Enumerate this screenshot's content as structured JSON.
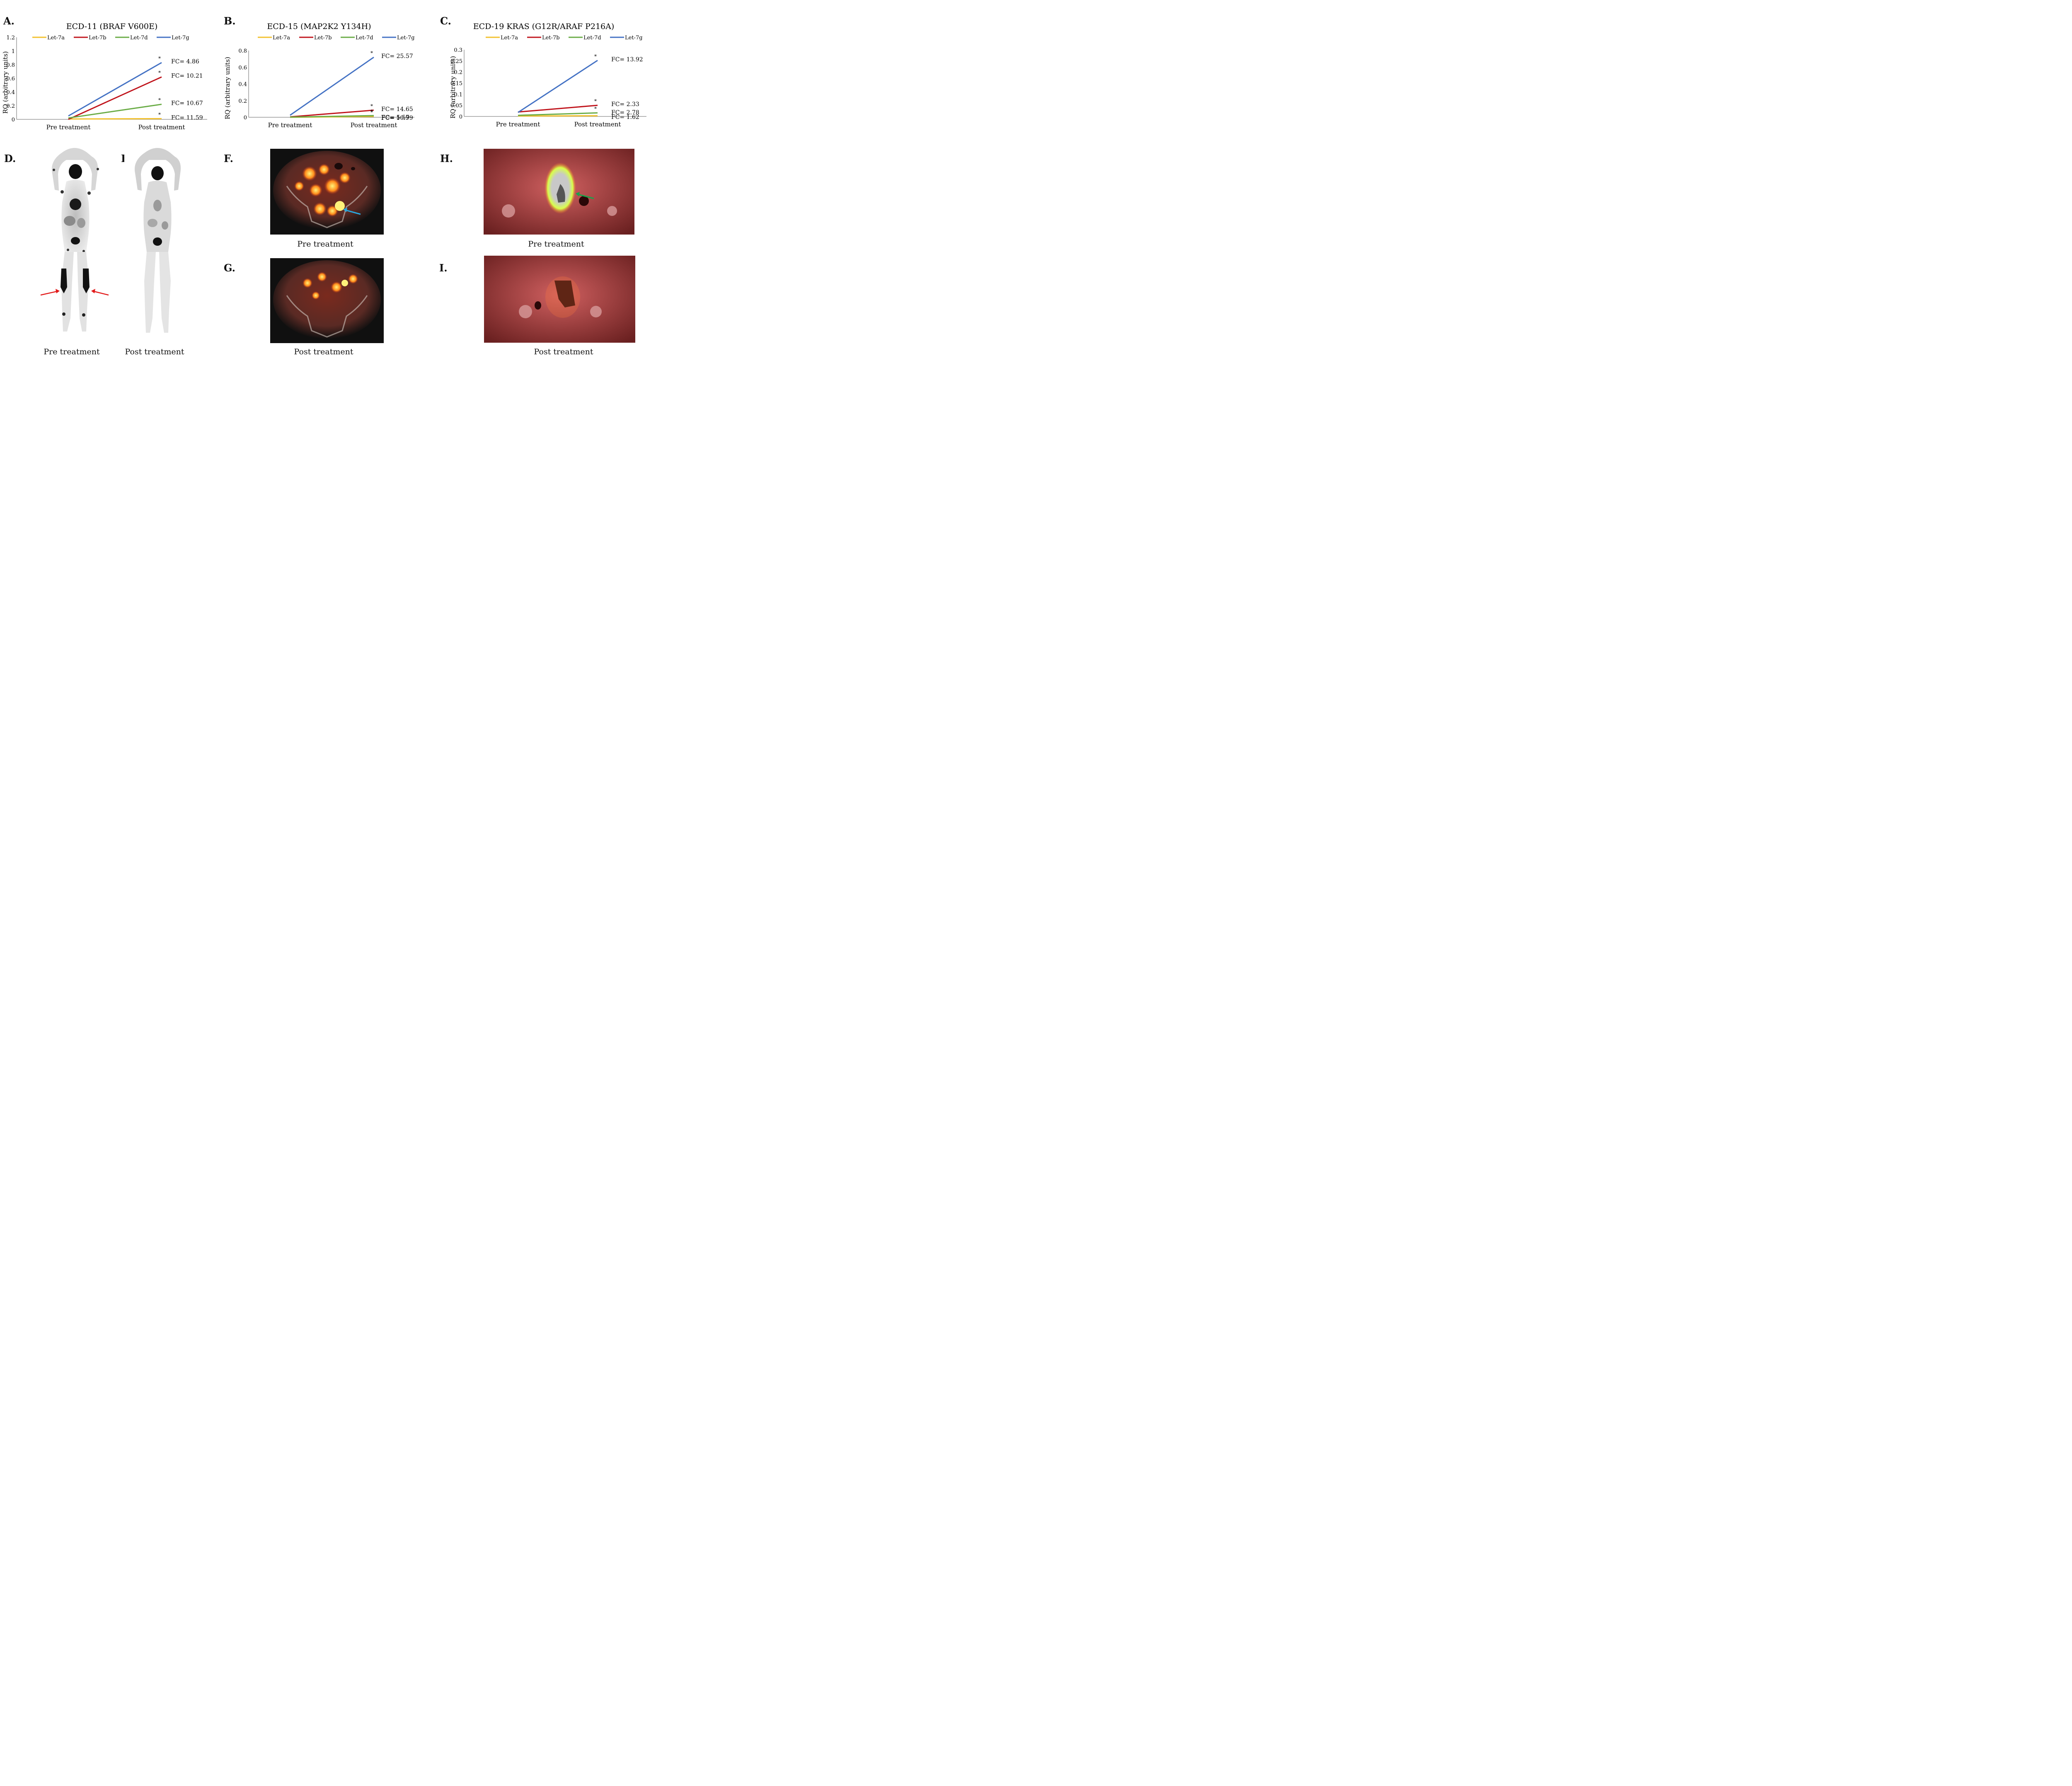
{
  "panels": {
    "A": "A.",
    "B": "B.",
    "C": "C.",
    "D": "D.",
    "E": "E.",
    "F": "F.",
    "G": "G.",
    "H": "H.",
    "I": "I."
  },
  "chart_data": [
    {
      "type": "line",
      "title": "ECD-11 (BRAF V600E)",
      "ylabel": "RQ (arbitrary units)",
      "xlabel": "",
      "categories": [
        "Pre treatment",
        "Post treatment"
      ],
      "ylim": [
        0,
        1.2
      ],
      "yticks": [
        "0",
        "0.2",
        "0.4",
        "0.6",
        "0.8",
        "1",
        "1.2"
      ],
      "ytick_values": [
        0,
        0.2,
        0.4,
        0.6,
        0.8,
        1,
        1.2
      ],
      "legend_position": "top",
      "series": [
        {
          "name": "Let-7a",
          "color": "#f2c12e",
          "values": [
            0.005,
            0.01
          ],
          "fc": "FC= 11.59",
          "sig": "*"
        },
        {
          "name": "Let-7b",
          "color": "#c0141c",
          "values": [
            0.0,
            0.62
          ],
          "fc": "FC= 10.21",
          "sig": "*"
        },
        {
          "name": "Let-7d",
          "color": "#6aac46",
          "values": [
            0.02,
            0.22
          ],
          "fc": "FC= 10.67",
          "sig": "*"
        },
        {
          "name": "Let-7g",
          "color": "#4472c4",
          "values": [
            0.05,
            0.83
          ],
          "fc": "FC= 4.86",
          "sig": "*"
        }
      ]
    },
    {
      "type": "line",
      "title": "ECD-15 (MAP2K2 Y134H)",
      "ylabel": "RQ (arbitrary units)",
      "xlabel": "",
      "categories": [
        "Pre treatment",
        "Post treatment"
      ],
      "ylim": [
        0,
        0.8
      ],
      "yticks": [
        "0",
        "0.2",
        "0.4",
        "0.6",
        "0.8"
      ],
      "ytick_values": [
        0,
        0.2,
        0.4,
        0.6,
        0.8
      ],
      "legend_position": "top",
      "series": [
        {
          "name": "Let-7a",
          "color": "#f2c12e",
          "values": [
            0.0,
            0.01
          ],
          "fc": "FC= 10.99",
          "sig": "*"
        },
        {
          "name": "Let-7b",
          "color": "#c0141c",
          "values": [
            0.005,
            0.085
          ],
          "fc": "FC= 14.65",
          "sig": "*"
        },
        {
          "name": "Let-7d",
          "color": "#6aac46",
          "values": [
            0.002,
            0.02
          ],
          "fc": "FC= 5.57",
          "sig": "*"
        },
        {
          "name": "Let-7g",
          "color": "#4472c4",
          "values": [
            0.025,
            0.72
          ],
          "fc": "FC= 25.57",
          "sig": "*"
        }
      ]
    },
    {
      "type": "line",
      "title": "ECD-19 KRAS (G12R/ARAF P216A)",
      "ylabel": "RQ (arbitrary units)",
      "xlabel": "",
      "categories": [
        "Pre treatment",
        "Post treatment"
      ],
      "ylim": [
        0,
        0.3
      ],
      "yticks": [
        "0",
        "0.05",
        "0.1",
        "0.15",
        "0.2",
        "0.25",
        "0.3"
      ],
      "ytick_values": [
        0,
        0.05,
        0.1,
        0.15,
        0.2,
        0.25,
        0.3
      ],
      "legend_position": "top",
      "series": [
        {
          "name": "Let-7a",
          "color": "#f2c12e",
          "values": [
            0.002,
            0.003
          ],
          "fc": "FC= 1.62",
          "sig": ""
        },
        {
          "name": "Let-7b",
          "color": "#c0141c",
          "values": [
            0.02,
            0.05
          ],
          "fc": "FC= 2.33",
          "sig": "*"
        },
        {
          "name": "Let-7d",
          "color": "#6aac46",
          "values": [
            0.005,
            0.016
          ],
          "fc": "FC= 2.78",
          "sig": "*"
        },
        {
          "name": "Let-7g",
          "color": "#4472c4",
          "values": [
            0.018,
            0.252
          ],
          "fc": "FC= 13.92",
          "sig": "*"
        }
      ]
    }
  ],
  "captions": {
    "D": "Pre treatment",
    "E": "Post treatment",
    "F": "Pre treatment",
    "G": "Post treatment",
    "H": "Pre treatment",
    "I": "Post treatment"
  },
  "colors": {
    "arrow_red": "#e21a1a",
    "arrow_blue": "#29a9e0",
    "arrow_green": "#1aa34a"
  }
}
